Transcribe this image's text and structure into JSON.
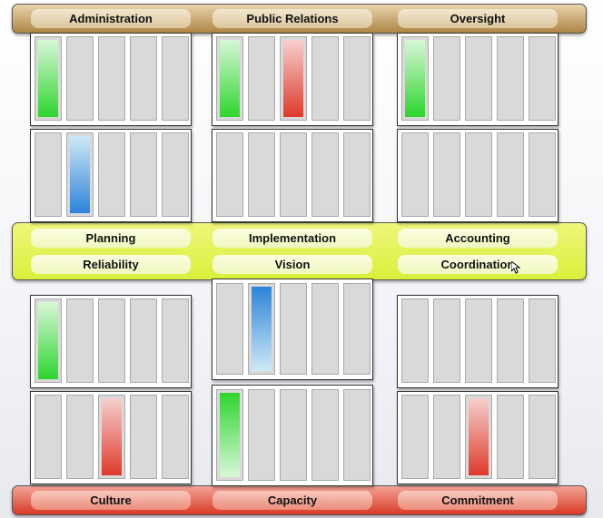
{
  "top_band": {
    "labels": [
      "Administration",
      "Public Relations",
      "Oversight"
    ]
  },
  "middle_band": {
    "row1": [
      "Planning",
      "Implementation",
      "Accounting"
    ],
    "row2": [
      "Reliability",
      "Vision",
      "Coordination"
    ]
  },
  "bottom_band": {
    "labels": [
      "Culture",
      "Capacity",
      "Commitment"
    ]
  },
  "panels": [
    {
      "name": "panel-administration-1",
      "filled": [
        {
          "slot": 1,
          "color": "green"
        }
      ]
    },
    {
      "name": "panel-public-relations-1",
      "filled": [
        {
          "slot": 1,
          "color": "green"
        },
        {
          "slot": 3,
          "color": "red"
        }
      ]
    },
    {
      "name": "panel-oversight-1",
      "filled": [
        {
          "slot": 1,
          "color": "green"
        }
      ]
    },
    {
      "name": "panel-administration-2",
      "filled": [
        {
          "slot": 2,
          "color": "blue"
        }
      ]
    },
    {
      "name": "panel-public-relations-2",
      "filled": []
    },
    {
      "name": "panel-oversight-2",
      "filled": []
    },
    {
      "name": "panel-culture-1",
      "filled": [
        {
          "slot": 1,
          "color": "green"
        }
      ]
    },
    {
      "name": "panel-capacity-1",
      "filled": [
        {
          "slot": 2,
          "color": "blue"
        }
      ]
    },
    {
      "name": "panel-commitment-1",
      "filled": []
    },
    {
      "name": "panel-culture-2",
      "filled": [
        {
          "slot": 3,
          "color": "red"
        }
      ]
    },
    {
      "name": "panel-capacity-2",
      "filled": [
        {
          "slot": 1,
          "color": "green"
        }
      ]
    },
    {
      "name": "panel-commitment-2",
      "filled": [
        {
          "slot": 3,
          "color": "red"
        }
      ]
    }
  ],
  "colors": {
    "green": "#2ed52e",
    "red": "#de3a2a",
    "blue": "#2c83d8"
  }
}
